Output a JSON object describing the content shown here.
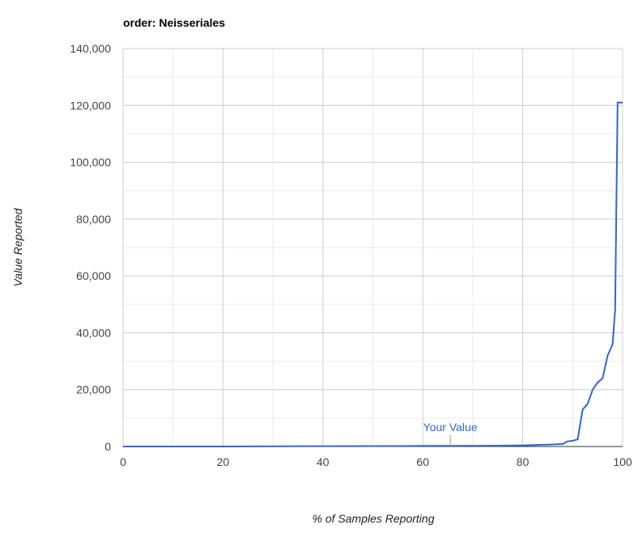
{
  "chart_data": {
    "type": "line",
    "title": "order: Neisseriales",
    "xlabel": "% of Samples Reporting",
    "ylabel": "Value Reported",
    "xlim": [
      0,
      100
    ],
    "ylim": [
      0,
      140000
    ],
    "x_ticks": [
      0,
      20,
      40,
      60,
      80,
      100
    ],
    "x_tick_labels": [
      "0",
      "20",
      "40",
      "60",
      "80",
      "100"
    ],
    "y_ticks": [
      0,
      20000,
      40000,
      60000,
      80000,
      100000,
      120000,
      140000
    ],
    "y_tick_labels": [
      "0",
      "20,000",
      "40,000",
      "60,000",
      "80,000",
      "100,000",
      "120,000",
      "140,000"
    ],
    "grid": true,
    "legend": "none",
    "series": [
      {
        "color": "#3366cc",
        "x": [
          0,
          20,
          37,
          50,
          60,
          70,
          75,
          80,
          84,
          86,
          88,
          89,
          90,
          91,
          92,
          93,
          94,
          95,
          96,
          97,
          98,
          98.5,
          99,
          100
        ],
        "y": [
          0,
          0,
          100,
          150,
          200,
          250,
          300,
          400,
          600,
          700,
          900,
          1800,
          2000,
          2500,
          13000,
          15000,
          20000,
          22500,
          24000,
          32000,
          36000,
          48000,
          121000,
          121000
        ]
      }
    ],
    "marker": {
      "label": "Your Value",
      "x": 65.5,
      "y": 0,
      "color": "#3366cc"
    }
  }
}
